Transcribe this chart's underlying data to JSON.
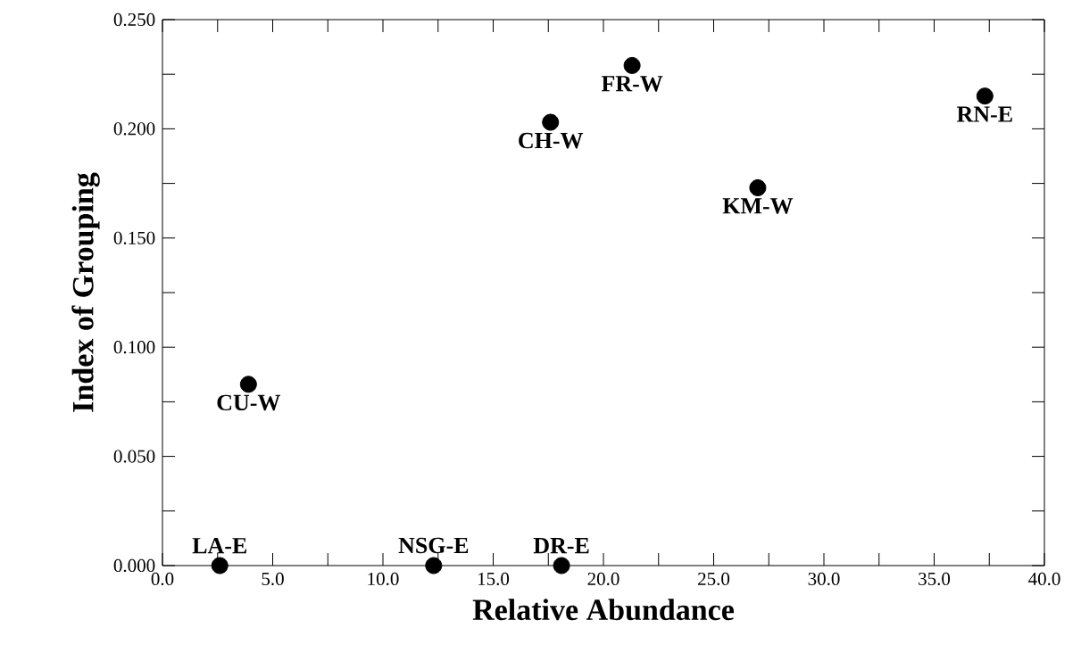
{
  "chart_data": {
    "type": "scatter",
    "xlabel": "Relative Abundance",
    "ylabel": "Index of Grouping",
    "x": [
      2.6,
      3.9,
      12.3,
      18.1,
      17.6,
      21.3,
      27.0,
      37.3
    ],
    "values": [
      0,
      0.083,
      0,
      0,
      0.203,
      0.229,
      0.173,
      0.215
    ],
    "color": "#000000",
    "grid": false,
    "xlim": [
      0,
      40
    ],
    "ylim": [
      0,
      0.25
    ],
    "xticks": [
      {
        "value": 0,
        "label": "0.0"
      },
      {
        "value": 2.5,
        "label": null
      },
      {
        "value": 5,
        "label": "5.0"
      },
      {
        "value": 7.5,
        "label": null
      },
      {
        "value": 10,
        "label": "10.0"
      },
      {
        "value": 12.5,
        "label": null
      },
      {
        "value": 15,
        "label": "15.0"
      },
      {
        "value": 17.5,
        "label": null
      },
      {
        "value": 20,
        "label": "20.0"
      },
      {
        "value": 22.5,
        "label": null
      },
      {
        "value": 25,
        "label": "25.0"
      },
      {
        "value": 27.5,
        "label": null
      },
      {
        "value": 30,
        "label": "30.0"
      },
      {
        "value": 32.5,
        "label": null
      },
      {
        "value": 35,
        "label": "35.0"
      },
      {
        "value": 37.5,
        "label": null
      },
      {
        "value": 40,
        "label": "40.0"
      }
    ],
    "yticks": [
      {
        "value": 0,
        "label": "0.000"
      },
      {
        "value": 0.025,
        "label": null
      },
      {
        "value": 0.05,
        "label": "0.050"
      },
      {
        "value": 0.075,
        "label": null
      },
      {
        "value": 0.1,
        "label": "0.100"
      },
      {
        "value": 0.125,
        "label": null
      },
      {
        "value": 0.15,
        "label": "0.150"
      },
      {
        "value": 0.175,
        "label": null
      },
      {
        "value": 0.2,
        "label": "0.200"
      },
      {
        "value": 0.225,
        "label": null
      },
      {
        "value": 0.25,
        "label": "0.250"
      }
    ],
    "annotations": [
      {
        "text": "LA-E",
        "x": 2.6,
        "y": 0
      },
      {
        "text": "CU-W",
        "x": 3.9,
        "y": 0.083
      },
      {
        "text": "NSG-E",
        "x": 12.3,
        "y": 0
      },
      {
        "text": "DR-E",
        "x": 18.1,
        "y": 0
      },
      {
        "text": "CH-W",
        "x": 17.6,
        "y": 0.203
      },
      {
        "text": "FR-W",
        "x": 21.3,
        "y": 0.229
      },
      {
        "text": "KM-W",
        "x": 27.0,
        "y": 0.173
      },
      {
        "text": "RN-E",
        "x": 37.3,
        "y": 0.215
      }
    ]
  }
}
